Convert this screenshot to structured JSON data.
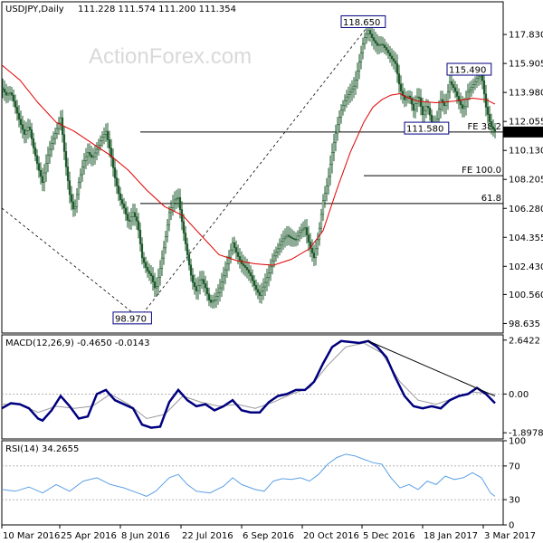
{
  "chart_data": [
    {
      "type": "candlestick",
      "symbol": "USDJPY",
      "timeframe": "Daily",
      "header": {
        "label": "USDJPY,Daily",
        "ohlc": "111.228 111.574 111.200 111.354"
      },
      "last_price": "111.354",
      "watermark": "ActionForex.com",
      "ylim": [
        98.0,
        120.0
      ],
      "y_ticks": [
        "117.830",
        "115.905",
        "113.980",
        "112.055",
        "110.130",
        "108.205",
        "106.280",
        "104.355",
        "102.430",
        "100.560",
        "98.635"
      ],
      "x_ticks": [
        "10 Mar 2016",
        "25 Apr 2016",
        "8 Jun 2016",
        "22 Jul 2016",
        "6 Sep 2016",
        "20 Oct 2016",
        "5 Dec 2016",
        "18 Jan 2017",
        "3 Mar 2017"
      ],
      "close_path": [
        [
          0,
          114.3
        ],
        [
          5,
          113.8
        ],
        [
          10,
          114.0
        ],
        [
          15,
          113.0
        ],
        [
          20,
          112.0
        ],
        [
          25,
          111.2
        ],
        [
          30,
          111.8
        ],
        [
          35,
          110.3
        ],
        [
          40,
          109.0
        ],
        [
          45,
          108.0
        ],
        [
          50,
          109.6
        ],
        [
          55,
          110.6
        ],
        [
          60,
          111.4
        ],
        [
          65,
          112.3
        ],
        [
          70,
          109.5
        ],
        [
          75,
          107.2
        ],
        [
          80,
          106.0
        ],
        [
          85,
          108.0
        ],
        [
          90,
          109.3
        ],
        [
          95,
          110.0
        ],
        [
          100,
          109.6
        ],
        [
          105,
          110.2
        ],
        [
          110,
          110.9
        ],
        [
          115,
          111.4
        ],
        [
          120,
          110.0
        ],
        [
          125,
          108.3
        ],
        [
          130,
          107.0
        ],
        [
          135,
          106.3
        ],
        [
          140,
          105.3
        ],
        [
          145,
          106.0
        ],
        [
          150,
          105.3
        ],
        [
          155,
          103.0
        ],
        [
          160,
          102.2
        ],
        [
          165,
          101.8
        ],
        [
          170,
          100.8
        ],
        [
          175,
          102.3
        ],
        [
          180,
          104.0
        ],
        [
          185,
          106.0
        ],
        [
          190,
          106.8
        ],
        [
          195,
          107.0
        ],
        [
          200,
          105.0
        ],
        [
          205,
          103.2
        ],
        [
          210,
          101.5
        ],
        [
          215,
          100.8
        ],
        [
          220,
          101.7
        ],
        [
          225,
          101.0
        ],
        [
          230,
          100.0
        ],
        [
          235,
          100.2
        ],
        [
          240,
          100.8
        ],
        [
          245,
          101.8
        ],
        [
          250,
          102.8
        ],
        [
          255,
          104.0
        ],
        [
          260,
          103.2
        ],
        [
          265,
          102.6
        ],
        [
          270,
          102.3
        ],
        [
          275,
          101.8
        ],
        [
          280,
          101.0
        ],
        [
          285,
          100.5
        ],
        [
          290,
          101.2
        ],
        [
          295,
          102.0
        ],
        [
          300,
          103.0
        ],
        [
          305,
          103.6
        ],
        [
          310,
          104.2
        ],
        [
          315,
          104.5
        ],
        [
          320,
          104.3
        ],
        [
          325,
          104.2
        ],
        [
          330,
          104.8
        ],
        [
          335,
          105.0
        ],
        [
          340,
          103.8
        ],
        [
          345,
          103.0
        ],
        [
          350,
          104.5
        ],
        [
          355,
          106.8
        ],
        [
          360,
          108.0
        ],
        [
          365,
          110.0
        ],
        [
          370,
          111.6
        ],
        [
          375,
          112.8
        ],
        [
          380,
          113.6
        ],
        [
          385,
          114.0
        ],
        [
          390,
          114.5
        ],
        [
          395,
          116.0
        ],
        [
          400,
          117.5
        ],
        [
          405,
          118.1
        ],
        [
          410,
          117.5
        ],
        [
          415,
          117.1
        ],
        [
          420,
          117.2
        ],
        [
          425,
          116.8
        ],
        [
          430,
          116.3
        ],
        [
          435,
          115.9
        ],
        [
          440,
          114.2
        ],
        [
          445,
          113.5
        ],
        [
          450,
          113.8
        ],
        [
          455,
          112.8
        ],
        [
          460,
          113.9
        ],
        [
          465,
          112.5
        ],
        [
          470,
          113.2
        ],
        [
          475,
          112.0
        ],
        [
          480,
          111.9
        ],
        [
          485,
          113.5
        ],
        [
          490,
          113.0
        ],
        [
          495,
          114.7
        ],
        [
          500,
          114.2
        ],
        [
          505,
          113.4
        ],
        [
          510,
          112.8
        ],
        [
          515,
          114.0
        ],
        [
          520,
          114.4
        ],
        [
          525,
          114.9
        ],
        [
          530,
          115.2
        ],
        [
          535,
          113.0
        ],
        [
          540,
          111.8
        ],
        [
          545,
          111.35
        ]
      ],
      "ma_path": [
        [
          0,
          115.8
        ],
        [
          20,
          114.8
        ],
        [
          40,
          113.3
        ],
        [
          60,
          112.0
        ],
        [
          80,
          111.4
        ],
        [
          100,
          110.6
        ],
        [
          120,
          109.8
        ],
        [
          140,
          108.8
        ],
        [
          160,
          107.5
        ],
        [
          180,
          106.4
        ],
        [
          200,
          105.8
        ],
        [
          220,
          104.5
        ],
        [
          240,
          103.2
        ],
        [
          260,
          102.8
        ],
        [
          280,
          102.6
        ],
        [
          300,
          102.5
        ],
        [
          320,
          102.9
        ],
        [
          340,
          103.6
        ],
        [
          355,
          104.8
        ],
        [
          370,
          107.5
        ],
        [
          385,
          110.0
        ],
        [
          400,
          112.0
        ],
        [
          410,
          113.0
        ],
        [
          420,
          113.5
        ],
        [
          430,
          113.8
        ],
        [
          440,
          113.9
        ],
        [
          450,
          113.6
        ],
        [
          460,
          113.4
        ],
        [
          480,
          113.3
        ],
        [
          500,
          113.4
        ],
        [
          520,
          113.6
        ],
        [
          535,
          113.5
        ],
        [
          545,
          113.2
        ]
      ],
      "trend_lines": [
        {
          "from": [
            0,
            106.3
          ],
          "to": [
            152,
            99.0
          ]
        },
        {
          "from": [
            152,
            99.0
          ],
          "to": [
            408,
            118.65
          ]
        }
      ],
      "levels": [
        {
          "label": "FE 38.2",
          "value": 111.35,
          "x_from": 155,
          "x_to": 556
        },
        {
          "label": "FE 100.0",
          "value": 108.45,
          "x_from": 402,
          "x_to": 556
        },
        {
          "label": "61.8",
          "value": 106.6,
          "x_from": 155,
          "x_to": 556
        }
      ],
      "annotations": [
        {
          "text": "118.650",
          "value": 118.65,
          "x": 378
        },
        {
          "text": "115.490",
          "value": 115.49,
          "x": 495
        },
        {
          "text": "111.580",
          "value": 111.58,
          "x": 448
        },
        {
          "text": "98.970",
          "value": 98.97,
          "x": 126
        }
      ]
    },
    {
      "type": "line",
      "title": "MACD(12,26,9) -0.4650 -0.0143",
      "ylim": [
        -2.2,
        2.9
      ],
      "y_ticks": [
        "2.6422",
        "0.00",
        "-1.8978"
      ],
      "zero_line": 0,
      "series": [
        {
          "values": [
            [
              0,
              -0.7
            ],
            [
              10,
              -0.45
            ],
            [
              20,
              -0.5
            ],
            [
              30,
              -0.7
            ],
            [
              40,
              -1.2
            ],
            [
              45,
              -1.3
            ],
            [
              55,
              -0.8
            ],
            [
              65,
              -0.1
            ],
            [
              75,
              -0.6
            ],
            [
              85,
              -1.2
            ],
            [
              95,
              -1.1
            ],
            [
              105,
              0.0
            ],
            [
              115,
              0.2
            ],
            [
              125,
              -0.3
            ],
            [
              135,
              -0.5
            ],
            [
              145,
              -0.7
            ],
            [
              155,
              -1.5
            ],
            [
              165,
              -1.65
            ],
            [
              175,
              -1.6
            ],
            [
              185,
              -0.4
            ],
            [
              195,
              0.2
            ],
            [
              205,
              -0.3
            ],
            [
              215,
              -0.6
            ],
            [
              225,
              -0.5
            ],
            [
              235,
              -0.8
            ],
            [
              245,
              -0.6
            ],
            [
              255,
              -0.3
            ],
            [
              265,
              -0.8
            ],
            [
              275,
              -0.9
            ],
            [
              285,
              -0.9
            ],
            [
              295,
              -0.4
            ],
            [
              305,
              -0.1
            ],
            [
              315,
              0.0
            ],
            [
              325,
              0.2
            ],
            [
              335,
              0.2
            ],
            [
              345,
              0.6
            ],
            [
              355,
              1.5
            ],
            [
              365,
              2.3
            ],
            [
              375,
              2.6
            ],
            [
              385,
              2.55
            ],
            [
              395,
              2.5
            ],
            [
              405,
              2.6
            ],
            [
              415,
              2.3
            ],
            [
              425,
              1.8
            ],
            [
              435,
              0.8
            ],
            [
              445,
              -0.1
            ],
            [
              455,
              -0.6
            ],
            [
              465,
              -0.7
            ],
            [
              475,
              -0.6
            ],
            [
              485,
              -0.7
            ],
            [
              495,
              -0.3
            ],
            [
              505,
              -0.1
            ],
            [
              515,
              0.0
            ],
            [
              525,
              0.3
            ],
            [
              535,
              0.0
            ],
            [
              545,
              -0.45
            ]
          ]
        },
        {
          "values": [
            [
              0,
              -0.5
            ],
            [
              20,
              -0.5
            ],
            [
              40,
              -0.9
            ],
            [
              60,
              -0.6
            ],
            [
              80,
              -0.7
            ],
            [
              100,
              -0.6
            ],
            [
              120,
              0.0
            ],
            [
              140,
              -0.5
            ],
            [
              160,
              -1.2
            ],
            [
              180,
              -1.0
            ],
            [
              200,
              -0.1
            ],
            [
              220,
              -0.4
            ],
            [
              240,
              -0.6
            ],
            [
              260,
              -0.5
            ],
            [
              280,
              -0.7
            ],
            [
              300,
              -0.4
            ],
            [
              320,
              0.0
            ],
            [
              340,
              0.3
            ],
            [
              360,
              1.4
            ],
            [
              380,
              2.3
            ],
            [
              400,
              2.5
            ],
            [
              420,
              2.0
            ],
            [
              440,
              0.6
            ],
            [
              460,
              -0.3
            ],
            [
              480,
              -0.5
            ],
            [
              500,
              -0.2
            ],
            [
              520,
              0.1
            ],
            [
              545,
              -0.01
            ]
          ]
        }
      ],
      "trend_lines": [
        {
          "from": [
            405,
            2.6
          ],
          "to": [
            545,
            -0.1
          ]
        }
      ]
    },
    {
      "type": "line",
      "title": "RSI(14) 34.2655",
      "ylim": [
        0,
        100
      ],
      "y_ticks": [
        "100",
        "70",
        "30",
        "0"
      ],
      "levels": [
        70,
        30
      ],
      "series": [
        {
          "values": [
            [
              0,
              42
            ],
            [
              15,
              40
            ],
            [
              30,
              45
            ],
            [
              45,
              38
            ],
            [
              60,
              48
            ],
            [
              75,
              40
            ],
            [
              90,
              52
            ],
            [
              105,
              56
            ],
            [
              120,
              48
            ],
            [
              135,
              44
            ],
            [
              150,
              38
            ],
            [
              160,
              34
            ],
            [
              170,
              40
            ],
            [
              185,
              56
            ],
            [
              195,
              60
            ],
            [
              205,
              48
            ],
            [
              215,
              40
            ],
            [
              230,
              38
            ],
            [
              245,
              46
            ],
            [
              255,
              56
            ],
            [
              265,
              48
            ],
            [
              280,
              42
            ],
            [
              290,
              40
            ],
            [
              300,
              52
            ],
            [
              310,
              55
            ],
            [
              320,
              54
            ],
            [
              330,
              56
            ],
            [
              340,
              52
            ],
            [
              350,
              60
            ],
            [
              360,
              72
            ],
            [
              370,
              80
            ],
            [
              380,
              84
            ],
            [
              390,
              82
            ],
            [
              400,
              78
            ],
            [
              410,
              74
            ],
            [
              420,
              72
            ],
            [
              430,
              56
            ],
            [
              440,
              44
            ],
            [
              450,
              48
            ],
            [
              460,
              42
            ],
            [
              470,
              52
            ],
            [
              480,
              48
            ],
            [
              490,
              58
            ],
            [
              500,
              54
            ],
            [
              510,
              56
            ],
            [
              520,
              62
            ],
            [
              530,
              56
            ],
            [
              540,
              38
            ],
            [
              545,
              34
            ]
          ]
        }
      ]
    }
  ]
}
